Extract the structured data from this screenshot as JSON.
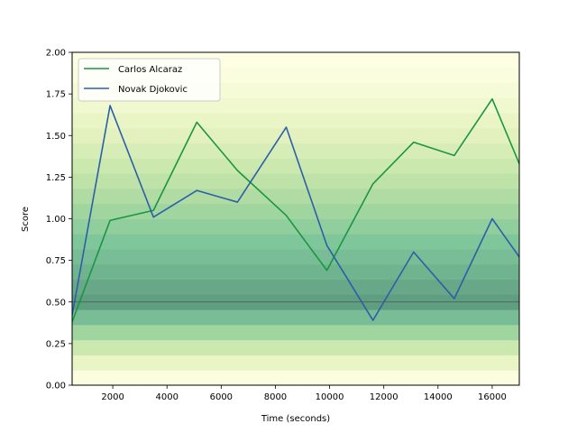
{
  "chart_data": {
    "type": "line",
    "title": "",
    "xlabel": "Time (seconds)",
    "ylabel": "Score",
    "xlim": [
      500,
      17000
    ],
    "ylim": [
      0.0,
      2.0
    ],
    "xticks": [
      2000,
      4000,
      6000,
      8000,
      10000,
      12000,
      14000,
      16000
    ],
    "yticks": [
      0.0,
      0.25,
      0.5,
      0.75,
      1.0,
      1.25,
      1.5,
      1.75,
      2.0
    ],
    "ytick_labels": [
      "0.00",
      "0.25",
      "0.50",
      "0.75",
      "1.00",
      "1.25",
      "1.50",
      "1.75",
      "2.00"
    ],
    "reference_line_y": 0.5,
    "grid": false,
    "legend_position": "top-left",
    "background_gradient": {
      "description": "horizontal bands, darkest near y=0.5, pale yellow at extremes",
      "colors": [
        "#ffffe5",
        "#e6f3c0",
        "#b9e0a4",
        "#7fc69b",
        "#5a9e7d"
      ]
    },
    "series": [
      {
        "name": "Carlos Alcaraz",
        "color": "#1a9641",
        "x": [
          500,
          1900,
          3500,
          5100,
          6600,
          8400,
          9900,
          11600,
          13100,
          14600,
          16000,
          17000
        ],
        "y": [
          0.38,
          0.99,
          1.05,
          1.58,
          1.29,
          1.02,
          0.69,
          1.21,
          1.46,
          1.38,
          1.72,
          1.33
        ]
      },
      {
        "name": "Novak Djokovic",
        "color": "#2c5fa8",
        "x": [
          500,
          1900,
          3500,
          5100,
          6600,
          8400,
          9900,
          11600,
          13100,
          14600,
          16000,
          17000
        ],
        "y": [
          0.42,
          1.68,
          1.01,
          1.17,
          1.1,
          1.55,
          0.84,
          0.39,
          0.8,
          0.52,
          1.0,
          0.77
        ]
      }
    ]
  }
}
